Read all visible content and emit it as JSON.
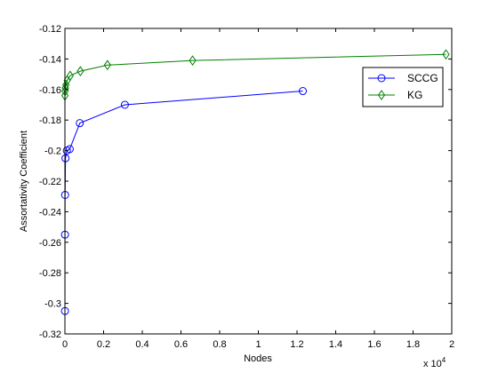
{
  "chart_data": {
    "type": "line",
    "xlabel": "Nodes",
    "ylabel": "Assortativity Coefficient",
    "x_multiplier_label": "x 10",
    "x_multiplier_exponent": "4",
    "xlim": [
      0,
      2
    ],
    "ylim": [
      -0.32,
      -0.12
    ],
    "xticks": [
      0,
      0.2,
      0.4,
      0.6,
      0.8,
      1,
      1.2,
      1.4,
      1.6,
      1.8,
      2
    ],
    "xtick_labels": [
      "0",
      "0.2",
      "0.4",
      "0.6",
      "0.8",
      "1",
      "1.2",
      "1.4",
      "1.6",
      "1.8",
      "2"
    ],
    "yticks": [
      -0.32,
      -0.3,
      -0.28,
      -0.26,
      -0.24,
      -0.22,
      -0.2,
      -0.18,
      -0.16,
      -0.14,
      -0.12
    ],
    "ytick_labels": [
      "-0.32",
      "-0.3",
      "-0.28",
      "-0.26",
      "-0.24",
      "-0.22",
      "-0.2",
      "-0.18",
      "-0.16",
      "-0.14",
      "-0.12"
    ],
    "grid": false,
    "legend_position": "top-right",
    "series": [
      {
        "name": "SCCG",
        "color": "#0000ff",
        "marker": "circle",
        "x": [
          0.0002,
          0.0004,
          0.001,
          0.003,
          0.01,
          0.025,
          0.077,
          0.31,
          1.23
        ],
        "y": [
          -0.305,
          -0.255,
          -0.229,
          -0.205,
          -0.2,
          -0.199,
          -0.182,
          -0.17,
          -0.161
        ]
      },
      {
        "name": "KG",
        "color": "#008000",
        "marker": "diamond",
        "x": [
          0.0002,
          0.0008,
          0.002,
          0.005,
          0.012,
          0.027,
          0.08,
          0.22,
          0.66,
          1.97
        ],
        "y": [
          -0.164,
          -0.161,
          -0.159,
          -0.157,
          -0.154,
          -0.151,
          -0.148,
          -0.144,
          -0.141,
          -0.137
        ]
      }
    ]
  }
}
